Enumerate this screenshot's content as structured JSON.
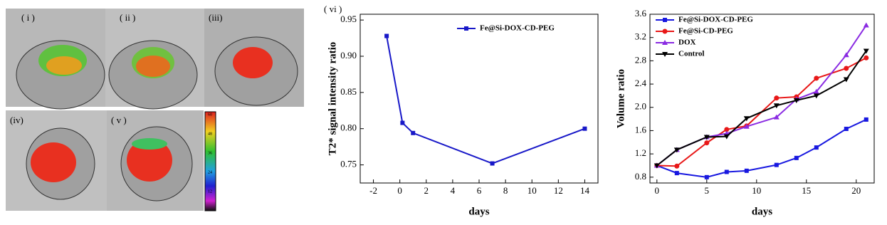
{
  "image_panels": {
    "labels": [
      "( i )",
      "( ii )",
      "(iii)",
      "(iv)",
      "( v )"
    ],
    "colorbar_ticks": [
      60,
      48,
      36,
      24,
      12
    ]
  },
  "chart_data": [
    {
      "type": "line",
      "annotation": "( vi )",
      "x_label": "days",
      "y_label": "T2* signal intensity ratio",
      "xlim": [
        -3,
        15
      ],
      "xticks": [
        -2,
        0,
        2,
        4,
        6,
        8,
        10,
        12,
        14
      ],
      "ylim": [
        0.725,
        0.958
      ],
      "yticks": [
        {
          "value": 0.75,
          "label": "0.75"
        },
        {
          "value": 0.8,
          "label": "0.80"
        },
        0.85,
        {
          "value": 0.9,
          "label": "0.90"
        },
        0.95
      ],
      "legend": "upper right",
      "x": [
        -1,
        0.2,
        1,
        7,
        14
      ],
      "series": [
        {
          "name": "Fe@Si-DOX-CD-PEG",
          "color": "#1818c8",
          "marker": "square",
          "values": [
            0.928,
            0.808,
            0.794,
            0.752,
            0.8
          ]
        }
      ]
    },
    {
      "type": "line",
      "x_label": "days",
      "y_label": "Volume ratio",
      "xlim": [
        -0.7,
        21.8
      ],
      "xticks": [
        0,
        5,
        10,
        15,
        20
      ],
      "ylim": [
        0.7,
        3.6
      ],
      "yticks": [
        0.8,
        1.2,
        1.6,
        {
          "value": 2,
          "label": "2.0"
        },
        2.4,
        2.8,
        3.2,
        3.6
      ],
      "legend": "upper left",
      "x": [
        0,
        2,
        5,
        7,
        9,
        12,
        14,
        16,
        19,
        21
      ],
      "series": [
        {
          "name": "Fe@Si-DOX-CD-PEG",
          "color": "#1818e0",
          "marker": "square",
          "values": [
            1.0,
            0.87,
            0.8,
            0.89,
            0.91,
            1.01,
            1.13,
            1.31,
            1.63,
            1.79
          ]
        },
        {
          "name": "Fe@Si-CD-PEG",
          "color": "#e81818",
          "marker": "circle",
          "values": [
            1.0,
            0.99,
            1.39,
            1.62,
            1.68,
            2.16,
            2.18,
            2.5,
            2.67,
            2.85
          ]
        },
        {
          "name": "DOX",
          "color": "#8a2be2",
          "marker": "triangle",
          "values": [
            1.0,
            1.27,
            1.49,
            1.55,
            1.67,
            1.83,
            2.14,
            2.27,
            2.9,
            3.41
          ]
        },
        {
          "name": "Control",
          "color": "#000000",
          "marker": "triangle-down",
          "values": [
            1.0,
            1.27,
            1.49,
            1.5,
            1.81,
            2.03,
            2.12,
            2.2,
            2.48,
            2.97
          ]
        }
      ]
    }
  ]
}
